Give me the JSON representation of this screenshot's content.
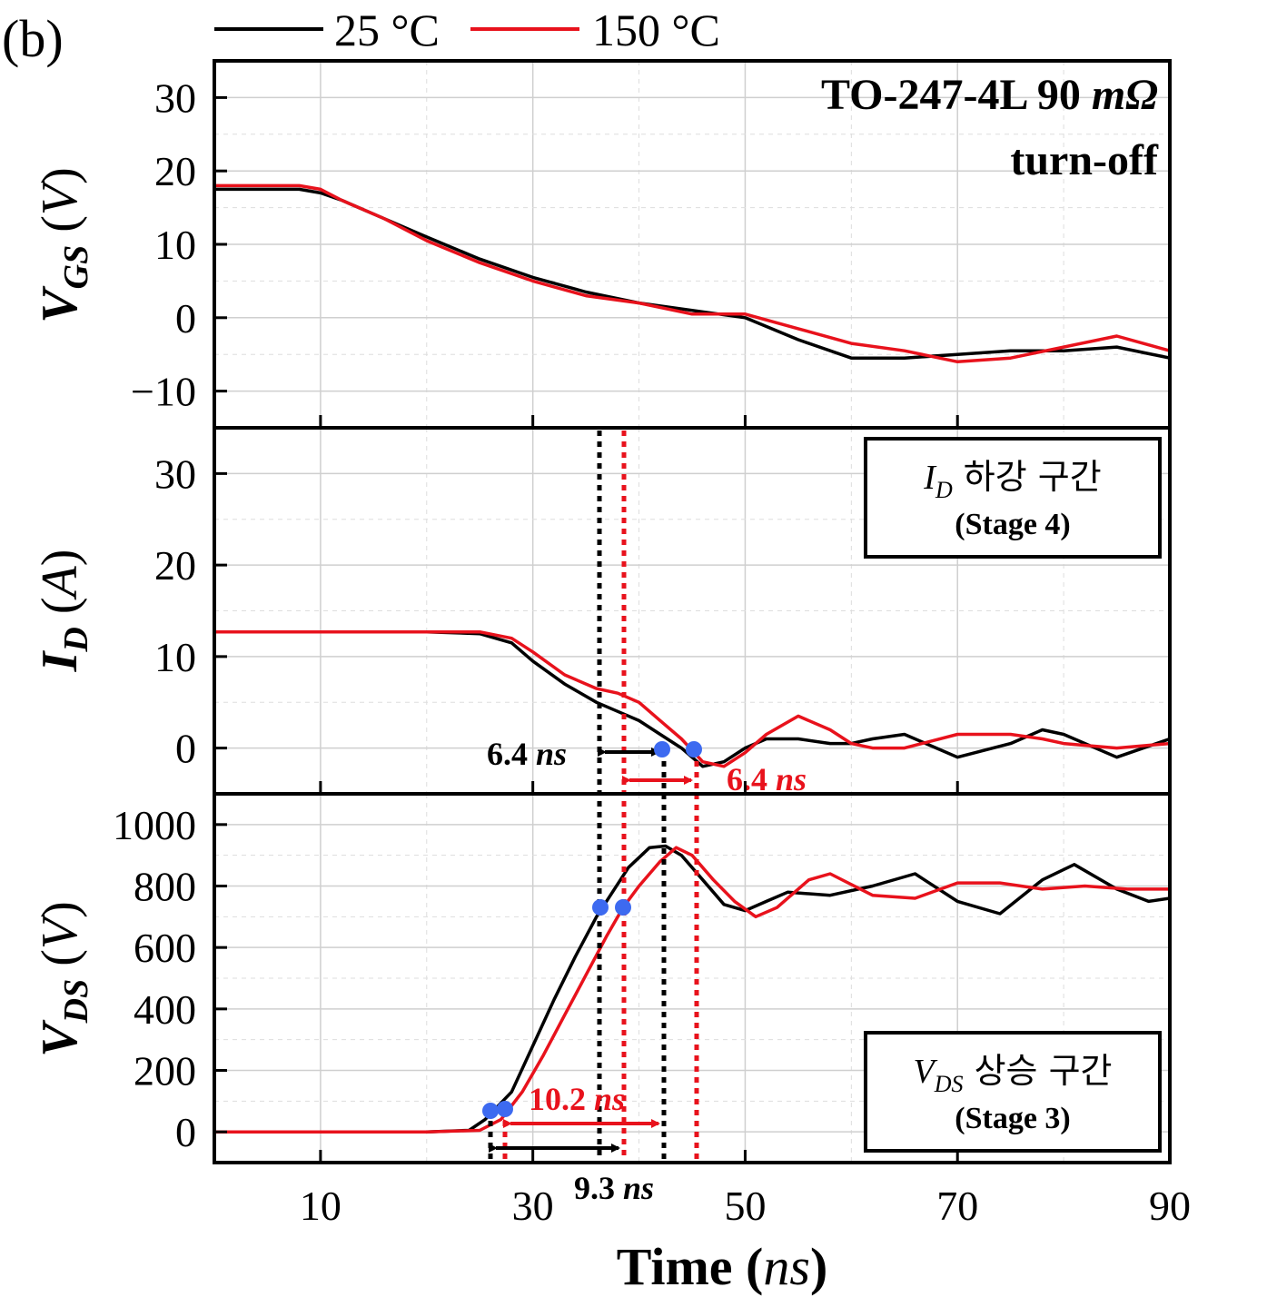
{
  "panel_label": "(b)",
  "legend": [
    {
      "label": "25 °C",
      "color": "#000000"
    },
    {
      "label": "150 °C",
      "color": "#e8121c"
    }
  ],
  "colors": {
    "series_25": "#000000",
    "series_150": "#e8121c",
    "marker": "#3d6af0",
    "grid": "#cfcfcf"
  },
  "annotations": {
    "device": "TO-247-4L 90 mΩ",
    "event": "turn-off",
    "id_box_title": "I_D 하강 구간",
    "id_box_stage": "(Stage 4)",
    "vds_box_title": "V_DS 상승 구간",
    "vds_box_stage": "(Stage 3)",
    "id_fall_25": "6.4 ns",
    "id_fall_150": "6.4 ns",
    "vds_rise_25": "9.3 ns",
    "vds_rise_150": "10.2 ns"
  },
  "chart_data": [
    {
      "type": "line",
      "panel": "VGS",
      "ylabel": "V_GS (V)",
      "xlim": [
        0,
        90
      ],
      "ylim": [
        -15,
        35
      ],
      "yticks": [
        -10,
        0,
        10,
        20,
        30
      ],
      "grid": true,
      "series": [
        {
          "name": "25 °C",
          "x": [
            0,
            5,
            8,
            10,
            12,
            16,
            20,
            25,
            30,
            35,
            40,
            45,
            50,
            55,
            60,
            65,
            70,
            75,
            80,
            85,
            90
          ],
          "y": [
            17.5,
            17.5,
            17.5,
            17,
            16,
            13.5,
            11,
            8,
            5.5,
            3.5,
            2,
            1,
            0,
            -3,
            -5.5,
            -5.5,
            -5,
            -4.5,
            -4.5,
            -4,
            -5.5
          ]
        },
        {
          "name": "150 °C",
          "x": [
            0,
            5,
            8,
            10,
            12,
            16,
            20,
            25,
            30,
            35,
            40,
            45,
            50,
            55,
            60,
            65,
            70,
            75,
            80,
            85,
            90
          ],
          "y": [
            18,
            18,
            18,
            17.5,
            16,
            13.5,
            10.5,
            7.5,
            5,
            3,
            2,
            0.5,
            0.5,
            -1.5,
            -3.5,
            -4.5,
            -6,
            -5.5,
            -4,
            -2.5,
            -4.5
          ]
        }
      ]
    },
    {
      "type": "line",
      "panel": "ID",
      "ylabel": "I_D (A)",
      "xlim": [
        0,
        90
      ],
      "ylim": [
        -5,
        35
      ],
      "yticks": [
        0,
        10,
        20,
        30
      ],
      "grid": true,
      "series": [
        {
          "name": "25 °C",
          "x": [
            0,
            10,
            20,
            25,
            28,
            30,
            33,
            36,
            38,
            40,
            42,
            44,
            46,
            48,
            50,
            52,
            55,
            58,
            60,
            62,
            65,
            70,
            75,
            78,
            80,
            85,
            90
          ],
          "y": [
            12.7,
            12.7,
            12.7,
            12.5,
            11.5,
            9.5,
            7,
            5,
            4,
            3,
            1.5,
            0,
            -2,
            -1.5,
            0,
            1,
            1,
            0.5,
            0.5,
            1,
            1.5,
            -1,
            0.5,
            2,
            1.5,
            -1,
            1
          ]
        },
        {
          "name": "150 °C",
          "x": [
            0,
            10,
            20,
            25,
            28,
            30,
            33,
            36,
            38,
            40,
            42,
            44,
            46,
            48,
            50,
            52,
            55,
            58,
            60,
            62,
            65,
            70,
            75,
            78,
            80,
            85,
            90
          ],
          "y": [
            12.7,
            12.7,
            12.7,
            12.7,
            12,
            10.5,
            8,
            6.5,
            6,
            5,
            3,
            1,
            -1.5,
            -2,
            -0.5,
            1.5,
            3.5,
            2,
            0.5,
            0,
            0,
            1.5,
            1.5,
            1,
            0.5,
            0,
            0.5
          ]
        }
      ]
    },
    {
      "type": "line",
      "panel": "VDS",
      "ylabel": "V_DS (V)",
      "xlim": [
        0,
        90
      ],
      "ylim": [
        -100,
        1100
      ],
      "yticks": [
        0,
        200,
        400,
        600,
        800,
        1000
      ],
      "xticks": [
        10,
        30,
        50,
        70,
        90
      ],
      "xlabel": "Time (ns)",
      "grid": true,
      "series": [
        {
          "name": "25 °C",
          "x": [
            0,
            10,
            20,
            24,
            25.5,
            28,
            30,
            32,
            34,
            36,
            37.5,
            39,
            41,
            42.5,
            44,
            46,
            48,
            50,
            52,
            54,
            58,
            62,
            66,
            70,
            74,
            78,
            81,
            85,
            88,
            90
          ],
          "y": [
            0,
            0,
            0,
            5,
            40,
            130,
            280,
            430,
            570,
            700,
            780,
            860,
            925,
            930,
            900,
            820,
            740,
            720,
            750,
            780,
            770,
            800,
            840,
            750,
            710,
            820,
            870,
            790,
            750,
            760
          ]
        },
        {
          "name": "150 °C",
          "x": [
            0,
            10,
            20,
            25,
            27,
            29,
            31,
            33,
            35,
            37,
            38.5,
            40,
            42,
            43.5,
            45,
            47,
            49,
            51,
            53,
            56,
            58,
            62,
            66,
            70,
            74,
            78,
            82,
            86,
            90
          ],
          "y": [
            0,
            0,
            0,
            5,
            40,
            130,
            250,
            380,
            510,
            640,
            730,
            800,
            880,
            925,
            900,
            820,
            750,
            700,
            730,
            820,
            840,
            770,
            760,
            810,
            810,
            790,
            800,
            790,
            790
          ]
        }
      ]
    }
  ]
}
